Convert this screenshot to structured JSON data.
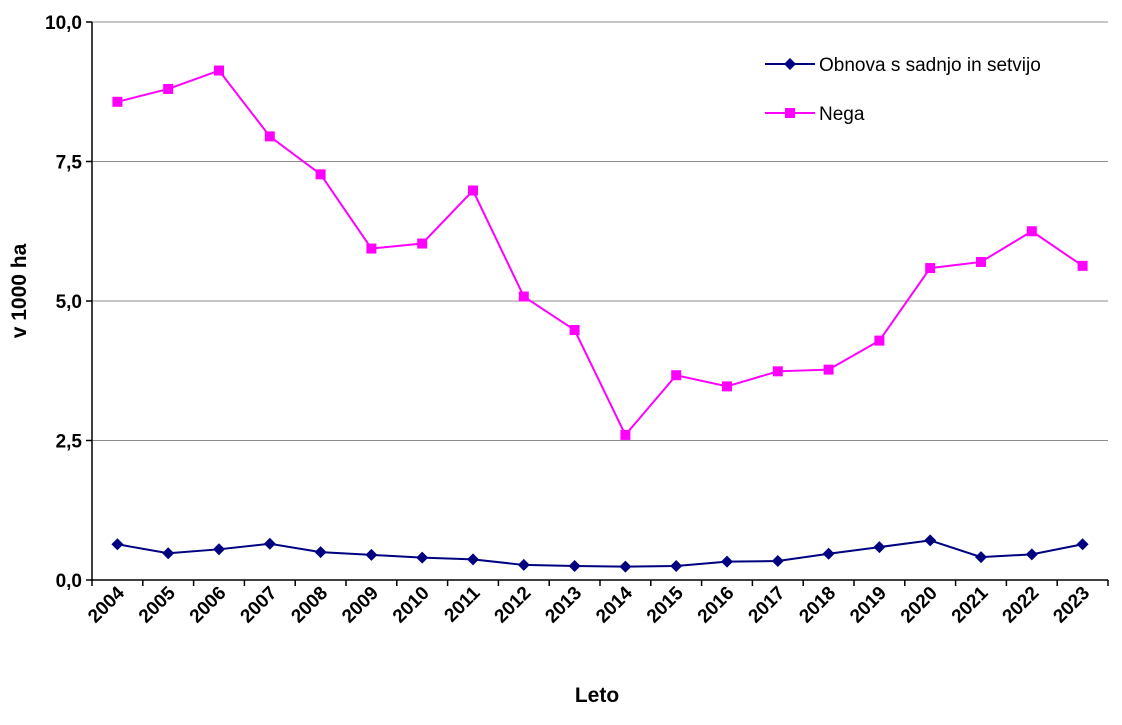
{
  "chart_data": {
    "type": "line",
    "xlabel": "Leto",
    "ylabel": "v 1000 ha",
    "ylim": [
      0,
      10
    ],
    "yticks": [
      "0,0",
      "2,5",
      "5,0",
      "7,5",
      "10,0"
    ],
    "ytick_values": [
      0,
      2.5,
      5,
      7.5,
      10
    ],
    "grid": "horizontal",
    "legend_position": "top-right",
    "categories": [
      "2004",
      "2005",
      "2006",
      "2007",
      "2008",
      "2009",
      "2010",
      "2011",
      "2012",
      "2013",
      "2014",
      "2015",
      "2016",
      "2017",
      "2018",
      "2019",
      "2020",
      "2021",
      "2022",
      "2023"
    ],
    "series": [
      {
        "name": "Obnova s sadnjo in setvijo",
        "color": "#000080",
        "marker": "diamond",
        "values": [
          0.64,
          0.48,
          0.55,
          0.65,
          0.5,
          0.45,
          0.4,
          0.37,
          0.27,
          0.25,
          0.24,
          0.25,
          0.33,
          0.34,
          0.47,
          0.59,
          0.71,
          0.41,
          0.46,
          0.64
        ]
      },
      {
        "name": "Nega",
        "color": "#FF00FF",
        "marker": "square",
        "values": [
          8.57,
          8.8,
          9.13,
          7.95,
          7.27,
          5.94,
          6.03,
          6.98,
          5.08,
          4.48,
          2.6,
          3.67,
          3.47,
          3.74,
          3.77,
          4.29,
          5.59,
          5.7,
          6.25,
          5.63
        ]
      }
    ]
  }
}
